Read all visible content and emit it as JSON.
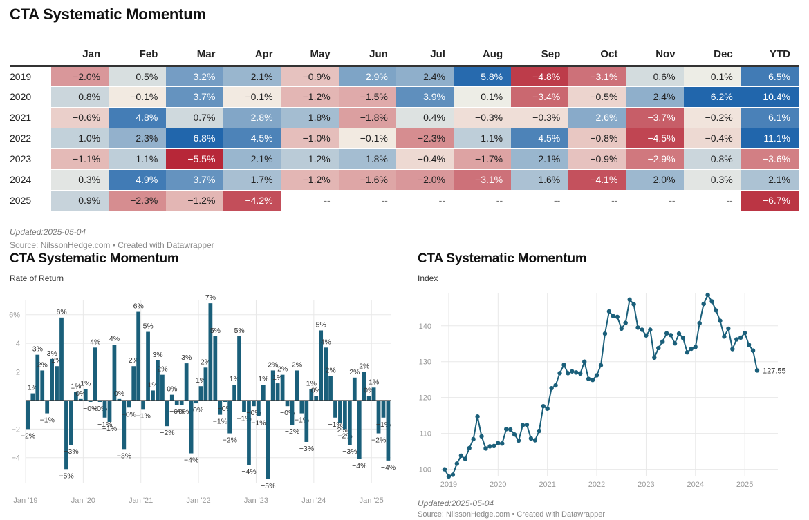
{
  "table": {
    "title": "CTA Systematic Momentum",
    "columns": [
      "Jan",
      "Feb",
      "Mar",
      "Apr",
      "May",
      "Jun",
      "Jul",
      "Aug",
      "Sep",
      "Oct",
      "Nov",
      "Dec",
      "YTD"
    ],
    "rows": [
      {
        "year": "2019",
        "values": [
          -2.0,
          0.5,
          3.2,
          2.1,
          -0.9,
          2.9,
          2.4,
          5.8,
          -4.8,
          -3.1,
          0.6,
          0.1,
          6.5
        ]
      },
      {
        "year": "2020",
        "values": [
          0.8,
          -0.1,
          3.7,
          -0.1,
          -1.2,
          -1.5,
          3.9,
          0.1,
          -3.4,
          -0.5,
          2.4,
          6.2,
          10.4
        ]
      },
      {
        "year": "2021",
        "values": [
          -0.6,
          4.8,
          0.7,
          2.8,
          1.8,
          -1.8,
          0.4,
          -0.3,
          -0.3,
          2.6,
          -3.7,
          -0.2,
          6.1
        ]
      },
      {
        "year": "2022",
        "values": [
          1.0,
          2.3,
          6.8,
          4.5,
          -1.0,
          -0.1,
          -2.3,
          1.1,
          4.5,
          -0.8,
          -4.5,
          -0.4,
          11.1
        ]
      },
      {
        "year": "2023",
        "values": [
          -1.1,
          1.1,
          -5.5,
          2.1,
          1.2,
          1.8,
          -0.4,
          -1.7,
          2.1,
          -0.9,
          -2.9,
          0.8,
          -3.6
        ]
      },
      {
        "year": "2024",
        "values": [
          0.3,
          4.9,
          3.7,
          1.7,
          -1.2,
          -1.6,
          -2.0,
          -3.1,
          1.6,
          -4.1,
          2.0,
          0.3,
          2.1
        ]
      },
      {
        "year": "2025",
        "values": [
          0.9,
          -2.3,
          -1.2,
          -4.2,
          null,
          null,
          null,
          null,
          null,
          null,
          null,
          null,
          -6.7
        ]
      }
    ],
    "empty_placeholder": "--",
    "updated": "Updated:2025-05-04",
    "source": "Source: NilssonHedge.com • Created with Datawrapper"
  },
  "colors": {
    "bar": "#1a5f7a",
    "line": "#1a5f7a",
    "grid": "#e8e8e8",
    "axis_text": "#999999"
  },
  "chart_data": [
    {
      "type": "bar",
      "title": "CTA Systematic Momentum",
      "subtitle": "Rate of Return",
      "ylabel": "",
      "xlabel": "",
      "ylim": [
        -5.8,
        7
      ],
      "yticks": [
        -4,
        -2,
        2,
        4,
        6
      ],
      "ytick_labels": [
        "−4",
        "−2",
        "2",
        "4",
        "6%"
      ],
      "xtick_labels": [
        "Jan '19",
        "Jan '20",
        "Jan '21",
        "Jan '22",
        "Jan '23",
        "Jan '24",
        "Jan '25"
      ],
      "grid": true,
      "values": [
        -2.0,
        0.5,
        3.2,
        2.1,
        -0.9,
        2.9,
        2.4,
        5.8,
        -4.8,
        -3.1,
        0.6,
        0.1,
        0.8,
        -0.1,
        3.7,
        -0.1,
        -1.2,
        -1.5,
        3.9,
        0.1,
        -3.4,
        -0.5,
        2.4,
        6.2,
        -0.6,
        4.8,
        0.7,
        2.8,
        1.8,
        -1.8,
        0.4,
        -0.3,
        -0.3,
        2.6,
        -3.7,
        -0.2,
        1.0,
        2.3,
        6.8,
        4.5,
        -1.0,
        -0.1,
        -2.3,
        1.1,
        4.5,
        -0.8,
        -4.5,
        -0.4,
        -1.1,
        1.1,
        -5.5,
        2.1,
        1.2,
        1.8,
        -0.4,
        -1.7,
        2.1,
        -0.9,
        -2.9,
        0.8,
        0.3,
        4.9,
        3.7,
        1.7,
        -1.2,
        -1.6,
        -2.0,
        -3.1,
        1.6,
        -4.1,
        2.0,
        0.3,
        0.9,
        -2.3,
        -1.2,
        -4.2
      ],
      "start": "Jan 2019",
      "updated": "Updated:2025-05-04",
      "source": "Source: NilssonHedge.com • Created with Datawrapper"
    },
    {
      "type": "line",
      "title": "CTA Systematic Momentum",
      "subtitle": "Index",
      "ylim": [
        98,
        149
      ],
      "yticks": [
        100,
        110,
        120,
        130,
        140
      ],
      "xtick_labels": [
        "2019",
        "2020",
        "2021",
        "2022",
        "2023",
        "2024",
        "2025"
      ],
      "grid": true,
      "start": "Dec 2018",
      "end_label": "127.55",
      "values": [
        100,
        98.0,
        98.5,
        101.6,
        103.8,
        102.9,
        105.9,
        108.4,
        114.7,
        109.2,
        105.8,
        106.4,
        106.5,
        107.3,
        107.2,
        111.2,
        111.1,
        109.7,
        108.0,
        112.3,
        112.4,
        108.6,
        108.1,
        110.7,
        117.6,
        116.9,
        122.6,
        123.4,
        126.8,
        129.1,
        126.8,
        127.3,
        127.0,
        126.7,
        130.0,
        125.2,
        124.9,
        126.2,
        129.0,
        137.8,
        144.0,
        142.7,
        142.5,
        139.2,
        140.8,
        147.3,
        146.0,
        139.5,
        138.9,
        137.3,
        138.9,
        131.1,
        133.8,
        135.6,
        137.9,
        137.4,
        135.1,
        137.8,
        136.6,
        132.6,
        133.6,
        134.1,
        140.7,
        146.1,
        148.6,
        146.8,
        144.3,
        141.4,
        137.0,
        139.2,
        133.5,
        136.2,
        136.7,
        138.0,
        134.7,
        133.1,
        127.55
      ],
      "updated": "Updated:2025-05-04",
      "source": "Source: NilssonHedge.com • Created with Datawrapper"
    }
  ]
}
